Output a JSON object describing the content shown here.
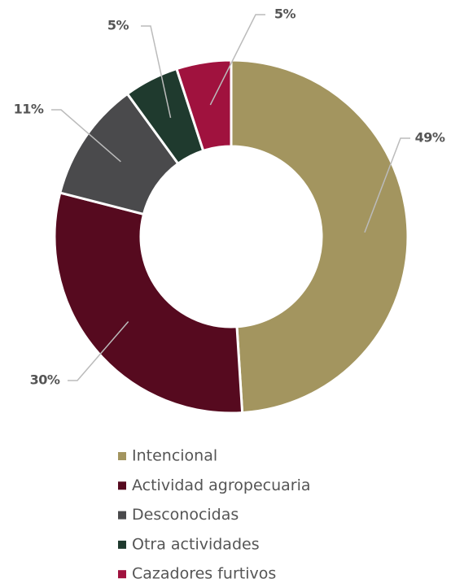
{
  "chart_data": {
    "type": "donut",
    "categories": [
      "Intencional",
      "Actividad agropecuaria",
      "Desconocidas",
      "Otra actividades",
      "Cazadores furtivos"
    ],
    "values": [
      49,
      30,
      11,
      5,
      5
    ],
    "value_labels": [
      "49%",
      "30%",
      "11%",
      "5%",
      "5%"
    ],
    "colors": [
      "#a3955f",
      "#560a1f",
      "#4a4a4c",
      "#1f3a2e",
      "#a0123e"
    ]
  }
}
